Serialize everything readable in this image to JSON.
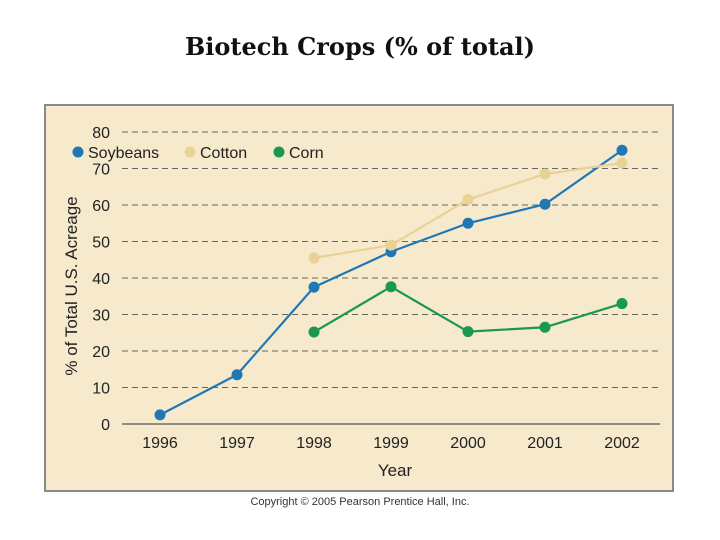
{
  "slide": {
    "title": "Biotech Crops (% of total)",
    "copyright": "Copyright © 2005 Pearson Prentice Hall, Inc."
  },
  "chart_data": {
    "type": "line",
    "title": "",
    "xlabel": "Year",
    "ylabel": "% of Total U.S. Acreage",
    "ylim": [
      0,
      80
    ],
    "yticks": [
      0,
      10,
      20,
      30,
      40,
      50,
      60,
      70,
      80
    ],
    "categories": [
      "1996",
      "1997",
      "1998",
      "1999",
      "2000",
      "2001",
      "2002"
    ],
    "grid": "horizontal dashed",
    "legend": "top-left",
    "background": "#f6e9cc",
    "series": [
      {
        "name": "Soybeans",
        "color": "#1f77b4",
        "values": [
          2.5,
          13.5,
          37.5,
          47.2,
          55,
          60.2,
          75
        ]
      },
      {
        "name": "Cotton",
        "color": "#e9d296",
        "values": [
          null,
          null,
          45.5,
          49,
          61.5,
          68.5,
          71.5
        ]
      },
      {
        "name": "Corn",
        "color": "#1a9850",
        "values": [
          null,
          null,
          25.2,
          37.6,
          25.3,
          26.5,
          33
        ]
      }
    ]
  }
}
